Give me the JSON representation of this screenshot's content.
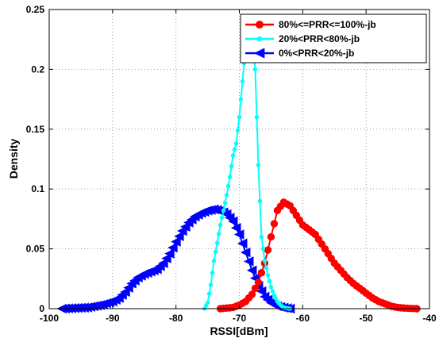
{
  "chart_data": {
    "type": "line",
    "title": "",
    "xlabel": "RSSI[dBm]",
    "ylabel": "Density",
    "xlim": [
      -100,
      -40
    ],
    "ylim": [
      0,
      0.25
    ],
    "xticks": [
      -100,
      -90,
      -80,
      -70,
      -60,
      -50,
      -40
    ],
    "yticks": [
      0,
      0.05,
      0.1,
      0.15,
      0.2,
      0.25
    ],
    "xtick_labels": [
      "-100",
      "-90",
      "-80",
      "-70",
      "-60",
      "-50",
      "-40"
    ],
    "ytick_labels": [
      "0",
      "0.05",
      "0.1",
      "0.15",
      "0.2",
      "0.25"
    ],
    "grid": true,
    "legend_position": "top-right",
    "series": [
      {
        "name": "80%<=PRR<=100%-jb",
        "color": "#ff0000",
        "marker": "circle",
        "x": [
          -73,
          -71,
          -70,
          -69,
          -68,
          -67,
          -66,
          -65,
          -64,
          -63,
          -62,
          -61,
          -60,
          -59,
          -58,
          -57,
          -56,
          -55,
          -54,
          -53,
          -52,
          -51,
          -50,
          -49,
          -48,
          -47,
          -46,
          -45,
          -44,
          -43,
          -42
        ],
        "y": [
          0,
          0.001,
          0.003,
          0.006,
          0.012,
          0.022,
          0.038,
          0.06,
          0.082,
          0.089,
          0.086,
          0.078,
          0.07,
          0.066,
          0.062,
          0.054,
          0.046,
          0.038,
          0.032,
          0.026,
          0.021,
          0.017,
          0.013,
          0.009,
          0.006,
          0.004,
          0.002,
          0.001,
          0.0005,
          0.0002,
          0
        ]
      },
      {
        "name": "20%<PRR<80%-jb",
        "color": "#00ffff",
        "marker": "dot",
        "x": [
          -75.5,
          -75,
          -74.5,
          -74,
          -73.5,
          -73,
          -72.5,
          -72,
          -71.5,
          -71,
          -70.5,
          -70,
          -69.5,
          -69,
          -68.5,
          -68,
          -67.5,
          -67,
          -66.5,
          -66,
          -65.5,
          -65,
          -64.5,
          -64,
          -63.5,
          -63,
          -62.5,
          -62
        ],
        "y": [
          0,
          0.005,
          0.02,
          0.04,
          0.055,
          0.07,
          0.082,
          0.095,
          0.11,
          0.128,
          0.138,
          0.16,
          0.19,
          0.22,
          0.243,
          0.23,
          0.2,
          0.12,
          0.06,
          0.04,
          0.028,
          0.018,
          0.011,
          0.006,
          0.003,
          0.001,
          0.0005,
          0
        ]
      },
      {
        "name": "0%<PRR<20%-jb",
        "color": "#0000ff",
        "marker": "triangle-left",
        "x": [
          -98,
          -96,
          -94,
          -92,
          -90,
          -89,
          -88,
          -87,
          -86,
          -85,
          -84,
          -83,
          -82,
          -81,
          -80,
          -79,
          -78,
          -77,
          -76,
          -75,
          -74,
          -73,
          -72,
          -71,
          -70,
          -69,
          -68,
          -67,
          -66,
          -65,
          -64,
          -63,
          -62
        ],
        "y": [
          0,
          0.0005,
          0.001,
          0.003,
          0.006,
          0.009,
          0.014,
          0.021,
          0.026,
          0.029,
          0.031,
          0.033,
          0.038,
          0.046,
          0.056,
          0.065,
          0.072,
          0.077,
          0.08,
          0.082,
          0.083,
          0.082,
          0.079,
          0.073,
          0.062,
          0.047,
          0.032,
          0.019,
          0.01,
          0.005,
          0.002,
          0.0008,
          0
        ]
      }
    ]
  }
}
